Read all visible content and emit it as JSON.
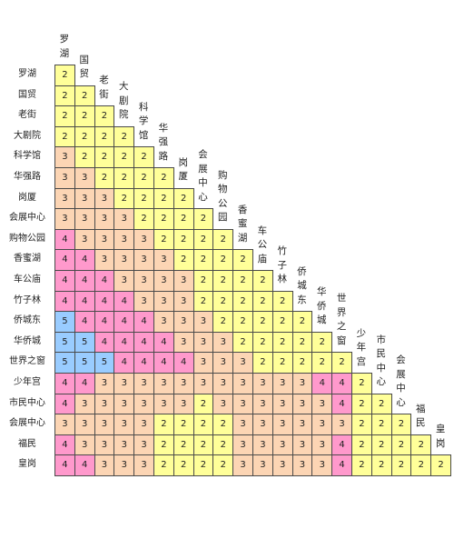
{
  "stations": [
    "罗湖",
    "国贸",
    "老街",
    "大剧院",
    "科学馆",
    "华强路",
    "岗厦",
    "会展中心",
    "购物公园",
    "香蜜湖",
    "车公庙",
    "竹子林",
    "侨城东",
    "华侨城",
    "世界之窗",
    "少年宫",
    "市民中心",
    "会展中心",
    "福民",
    "皇岗"
  ],
  "colors": {
    "2": "#ffff99",
    "3": "#fcd5b4",
    "4": "#ff99cc",
    "5": "#99ccff"
  },
  "matrix": [
    [
      2
    ],
    [
      2,
      2
    ],
    [
      2,
      2,
      2
    ],
    [
      2,
      2,
      2,
      2
    ],
    [
      3,
      2,
      2,
      2,
      2
    ],
    [
      3,
      3,
      2,
      2,
      2,
      2
    ],
    [
      3,
      3,
      3,
      2,
      2,
      2,
      2
    ],
    [
      3,
      3,
      3,
      3,
      2,
      2,
      2,
      2
    ],
    [
      4,
      3,
      3,
      3,
      3,
      2,
      2,
      2,
      2
    ],
    [
      4,
      4,
      3,
      3,
      3,
      3,
      2,
      2,
      2,
      2
    ],
    [
      4,
      4,
      4,
      3,
      3,
      3,
      3,
      2,
      2,
      2,
      2
    ],
    [
      4,
      4,
      4,
      4,
      3,
      3,
      3,
      2,
      2,
      2,
      2,
      2
    ],
    [
      5,
      4,
      4,
      4,
      4,
      3,
      3,
      3,
      2,
      2,
      2,
      2,
      2
    ],
    [
      5,
      5,
      4,
      4,
      4,
      4,
      3,
      3,
      3,
      2,
      2,
      2,
      2,
      2
    ],
    [
      5,
      5,
      5,
      4,
      4,
      4,
      4,
      3,
      3,
      3,
      2,
      2,
      2,
      2,
      2
    ],
    [
      4,
      4,
      3,
      3,
      3,
      3,
      3,
      3,
      3,
      3,
      3,
      3,
      3,
      4,
      4,
      2
    ],
    [
      4,
      3,
      3,
      3,
      3,
      3,
      3,
      2,
      3,
      3,
      3,
      3,
      3,
      3,
      4,
      2,
      2
    ],
    [
      3,
      3,
      3,
      3,
      3,
      2,
      2,
      2,
      2,
      3,
      3,
      3,
      3,
      3,
      3,
      2,
      2,
      2
    ],
    [
      4,
      3,
      3,
      3,
      3,
      2,
      2,
      2,
      2,
      3,
      3,
      3,
      3,
      3,
      4,
      2,
      2,
      2,
      2
    ],
    [
      4,
      4,
      3,
      3,
      3,
      2,
      2,
      2,
      2,
      3,
      3,
      3,
      3,
      3,
      4,
      2,
      2,
      2,
      2,
      2
    ]
  ]
}
